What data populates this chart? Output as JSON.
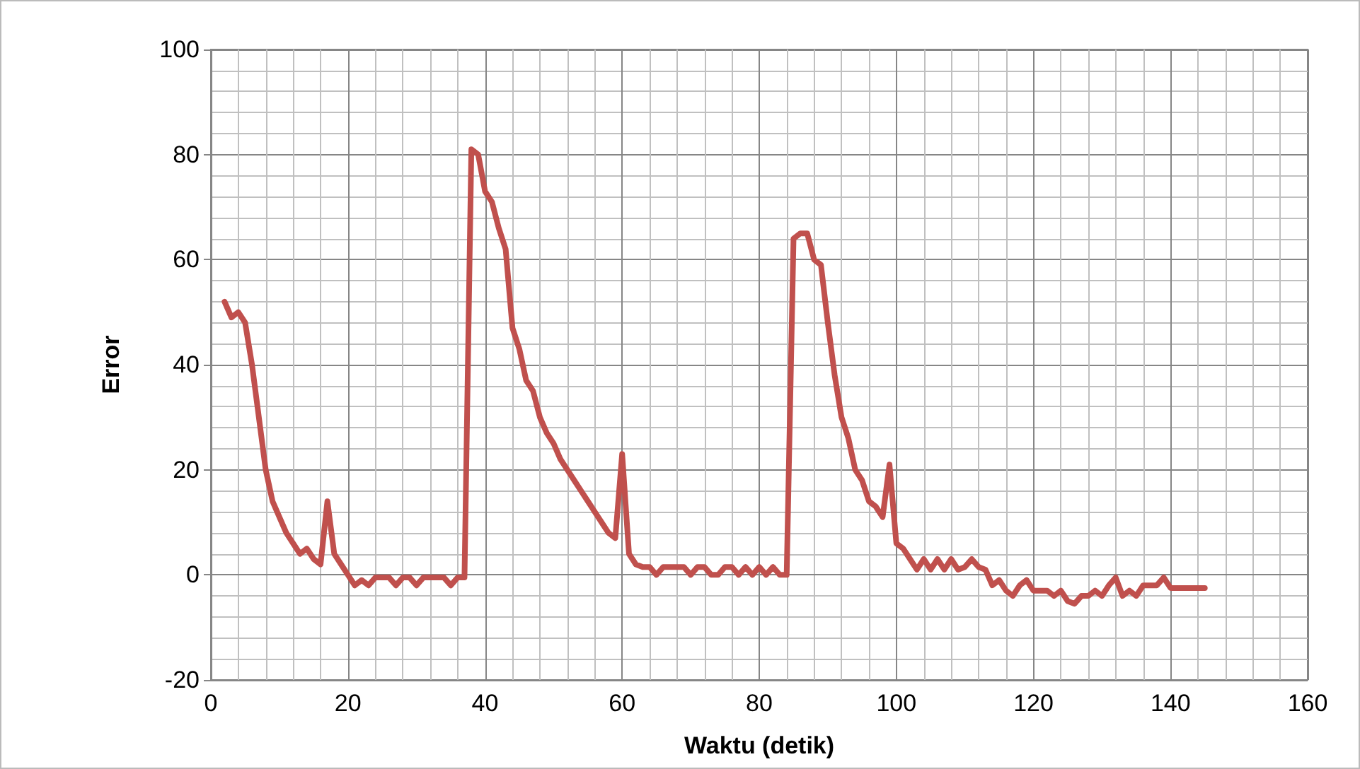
{
  "chart_data": {
    "type": "line",
    "xlabel": "Waktu (detik)",
    "ylabel": "Error",
    "xlim": [
      0,
      160
    ],
    "xticks": [
      0,
      20,
      40,
      60,
      80,
      100,
      120,
      140,
      160
    ],
    "ylim": [
      -20,
      100
    ],
    "yticks": [
      -20,
      0,
      20,
      40,
      60,
      80,
      100
    ],
    "grid": true,
    "marker": "none",
    "line_style": "solid",
    "series": [
      {
        "color": "#c0504d",
        "x": [
          2,
          3,
          4,
          5,
          6,
          7,
          8,
          9,
          10,
          11,
          12,
          13,
          14,
          15,
          16,
          17,
          18,
          19,
          20,
          21,
          22,
          23,
          24,
          25,
          26,
          27,
          28,
          29,
          30,
          31,
          32,
          33,
          34,
          35,
          36,
          37,
          38,
          39,
          40,
          41,
          42,
          43,
          44,
          45,
          46,
          47,
          48,
          49,
          50,
          51,
          52,
          53,
          54,
          55,
          56,
          57,
          58,
          59,
          60,
          61,
          62,
          63,
          64,
          65,
          66,
          67,
          68,
          69,
          70,
          71,
          72,
          73,
          74,
          75,
          76,
          77,
          78,
          79,
          80,
          81,
          82,
          83,
          84,
          85,
          86,
          87,
          88,
          89,
          90,
          91,
          92,
          93,
          94,
          95,
          96,
          97,
          98,
          99,
          100,
          101,
          102,
          103,
          104,
          105,
          106,
          107,
          108,
          109,
          110,
          111,
          112,
          113,
          114,
          115,
          116,
          117,
          118,
          119,
          120,
          121,
          122,
          123,
          124,
          125,
          126,
          127,
          128,
          129,
          130,
          131,
          132,
          133,
          134,
          135,
          136,
          137,
          138,
          139,
          140,
          141,
          142,
          143,
          144,
          145
        ],
        "values": [
          52,
          49,
          50,
          48,
          40,
          30,
          20,
          14,
          11,
          8,
          6,
          4,
          5,
          3,
          2,
          14,
          4,
          2,
          0,
          -2,
          -1,
          -2,
          -0.5,
          -0.5,
          -0.5,
          -2,
          -0.5,
          -0.5,
          -2,
          -0.5,
          -0.5,
          -0.5,
          -0.5,
          -2,
          -0.5,
          -0.5,
          81,
          80,
          73,
          71,
          66,
          62,
          47,
          43,
          37,
          35,
          30,
          27,
          25,
          22,
          20,
          18,
          16,
          14,
          12,
          10,
          8,
          7,
          23,
          4,
          2,
          1.5,
          1.5,
          0,
          1.5,
          1.5,
          1.5,
          1.5,
          0,
          1.5,
          1.5,
          0,
          0,
          1.5,
          1.5,
          0,
          1.5,
          0,
          1.5,
          0,
          1.5,
          0,
          0,
          64,
          65,
          65,
          60,
          59,
          48,
          38,
          30,
          26,
          20,
          18,
          14,
          13,
          11,
          21,
          6,
          5,
          3,
          1,
          3,
          1,
          3,
          1,
          3,
          1,
          1.5,
          3,
          1.5,
          1,
          -2,
          -1,
          -3,
          -4,
          -2,
          -1,
          -3,
          -3,
          -3,
          -4,
          -3,
          -5,
          -5.5,
          -4,
          -4,
          -3,
          -4,
          -2,
          -0.5,
          -4,
          -3,
          -4,
          -2,
          -2,
          -2,
          -0.5,
          -2.5,
          -2.5,
          -2.5,
          -2.5,
          -2.5,
          -2.5
        ]
      }
    ]
  }
}
